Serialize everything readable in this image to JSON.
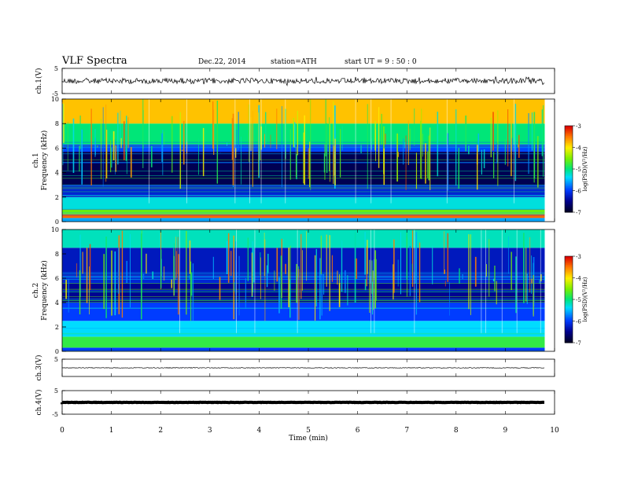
{
  "header": {
    "title": "VLF  Spectra",
    "date": "Dec.22, 2014",
    "station": "station=ATH",
    "start_ut": "start  UT  =   9  : 50 : 0"
  },
  "chart_data": [
    {
      "type": "line",
      "panel": "ch1-waveform",
      "ylabel": "ch.1(V)",
      "ylim": [
        -5,
        5
      ],
      "yticks": [
        5,
        -5
      ],
      "xlim": [
        0,
        9.8
      ],
      "baseline": 0,
      "description_color": "#000000"
    },
    {
      "type": "heatmap",
      "panel": "ch1-spectrogram",
      "ylabel": [
        "ch.1",
        "Frequency  (kHz)"
      ],
      "ylim": [
        0,
        10
      ],
      "yticks": [
        "0",
        "2",
        "4",
        "6",
        "8",
        "10"
      ],
      "xlim": [
        0,
        9.8
      ],
      "colorbar": {
        "label": "log(PSD)(V²/Hz)",
        "range": [
          -7,
          -3
        ],
        "ticks": [
          "-3",
          "-4",
          "-5",
          "-6",
          "-7"
        ]
      },
      "bands": [
        {
          "f": [
            0.0,
            0.3
          ],
          "value": -5.6
        },
        {
          "f": [
            0.3,
            0.6
          ],
          "value": -3.4
        },
        {
          "f": [
            0.6,
            1.0
          ],
          "value": -4.6
        },
        {
          "f": [
            1.0,
            2.0
          ],
          "value": -5.3
        },
        {
          "f": [
            2.0,
            3.0
          ],
          "value": -6.2
        },
        {
          "f": [
            3.0,
            5.7
          ],
          "value": -6.8
        },
        {
          "f": [
            5.7,
            6.3
          ],
          "value": -6.0
        },
        {
          "f": [
            6.3,
            8.0
          ],
          "value": -5.0
        },
        {
          "f": [
            8.0,
            10.0
          ],
          "value": -3.8
        }
      ]
    },
    {
      "type": "heatmap",
      "panel": "ch2-spectrogram",
      "ylabel": [
        "ch.2",
        "Frequency  (kHz)"
      ],
      "ylim": [
        0,
        10
      ],
      "yticks": [
        "0",
        "2",
        "4",
        "6",
        "8",
        "10"
      ],
      "xlim": [
        0,
        9.8
      ],
      "colorbar": {
        "label": "log(PSD)(V²/Hz)",
        "range": [
          -7,
          -3
        ],
        "ticks": [
          "-3",
          "-4",
          "-5",
          "-6",
          "-7"
        ]
      },
      "bands": [
        {
          "f": [
            0.0,
            0.3
          ],
          "value": -6.0
        },
        {
          "f": [
            0.3,
            1.2
          ],
          "value": -4.8
        },
        {
          "f": [
            1.2,
            2.5
          ],
          "value": -5.4
        },
        {
          "f": [
            2.5,
            4.0
          ],
          "value": -6.0
        },
        {
          "f": [
            4.0,
            5.6
          ],
          "value": -6.5
        },
        {
          "f": [
            5.6,
            6.2
          ],
          "value": -6.2
        },
        {
          "f": [
            6.2,
            8.5
          ],
          "value": -6.3
        },
        {
          "f": [
            8.5,
            10.0
          ],
          "value": -5.2
        }
      ]
    },
    {
      "type": "line",
      "panel": "ch3-waveform",
      "ylabel": "ch.3(V)",
      "ylim": [
        -5,
        5
      ],
      "yticks": [
        5
      ],
      "xlim": [
        0,
        9.8
      ],
      "baseline": 0
    },
    {
      "type": "line",
      "panel": "ch4-waveform",
      "ylabel": "ch.4(V)",
      "ylim": [
        -5,
        5
      ],
      "yticks": [
        5,
        -5
      ],
      "xlim": [
        0,
        9.8
      ],
      "baseline": 0
    }
  ],
  "xaxis": {
    "label": "Time  (min)",
    "range": [
      0,
      10
    ],
    "ticks": [
      "0",
      "1",
      "2",
      "3",
      "4",
      "5",
      "6",
      "7",
      "8",
      "9",
      "10"
    ]
  }
}
